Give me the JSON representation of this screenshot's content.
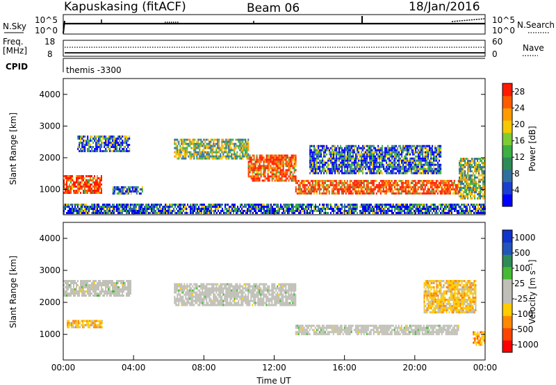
{
  "header": {
    "site": "Kapuskasing (fitACF)",
    "beam": "Beam 06",
    "date": "18/Jan/2016"
  },
  "strip_nsky": {
    "label": "N.Sky",
    "left_ticks": [
      "10^5",
      "10^0"
    ],
    "right_ticks": [
      "10^5",
      "10^0"
    ],
    "right_label": "N.Search"
  },
  "strip_freq": {
    "label_line1": "Freq.",
    "label_line2": "[MHz]",
    "left_ticks": [
      "18",
      "8"
    ],
    "right_ticks": [
      "60",
      "0"
    ],
    "right_label": "Nave"
  },
  "strip_cpid": {
    "label": "CPID",
    "text": "themis -3300"
  },
  "colors": {
    "power_scale": [
      "#0000ff",
      "#1a3fd0",
      "#2f6f9f",
      "#2e8b57",
      "#3cb043",
      "#7ccd33",
      "#f5c800",
      "#ff9a00",
      "#ff5a00",
      "#ff1a00"
    ],
    "velocity_scale": [
      "#1133cc",
      "#2255bb",
      "#2e8b57",
      "#44bb33",
      "#bfbfb7",
      "#bfbfb7",
      "#ffcc00",
      "#ff8800",
      "#ff4400",
      "#ff0000"
    ],
    "ground_scatter": "#bfbfb7"
  },
  "chart_data": [
    {
      "type": "heatmap",
      "name": "power-panel",
      "xlabel": "",
      "ylabel": "Slant Range [km]",
      "xlim": [
        0,
        24
      ],
      "ylim": [
        200,
        4500
      ],
      "yticks": [
        "1000",
        "2000",
        "3000",
        "4000"
      ],
      "colorbar": {
        "label": "Power [dB]",
        "ticks": [
          "4",
          "8",
          "12",
          "16",
          "20",
          "24",
          "28"
        ],
        "range": [
          0,
          30
        ]
      },
      "features": [
        {
          "t": [
            0.0,
            2.2
          ],
          "r": [
            900,
            1450
          ],
          "level": "high"
        },
        {
          "t": [
            0.8,
            3.8
          ],
          "r": [
            2200,
            2700
          ],
          "level": "low"
        },
        {
          "t": [
            2.8,
            4.5
          ],
          "r": [
            900,
            1100
          ],
          "level": "low"
        },
        {
          "t": [
            6.3,
            10.5
          ],
          "r": [
            2000,
            2600
          ],
          "level": "medium"
        },
        {
          "t": [
            10.5,
            13.2
          ],
          "r": [
            1300,
            2100
          ],
          "level": "high"
        },
        {
          "t": [
            13.2,
            22.5
          ],
          "r": [
            900,
            1300
          ],
          "level": "high"
        },
        {
          "t": [
            14.0,
            21.5
          ],
          "r": [
            1500,
            2400
          ],
          "level": "low"
        },
        {
          "t": [
            22.5,
            24.0
          ],
          "r": [
            700,
            2000
          ],
          "level": "medium"
        },
        {
          "t": [
            0.0,
            24.0
          ],
          "r": [
            250,
            550
          ],
          "level": "low"
        }
      ]
    },
    {
      "type": "heatmap",
      "name": "velocity-panel",
      "xlabel": "Time UT",
      "ylabel": "Slant Range [km]",
      "xlim": [
        0,
        24
      ],
      "ylim": [
        200,
        4500
      ],
      "xticks": [
        "00:00",
        "04:00",
        "08:00",
        "12:00",
        "16:00",
        "20:00",
        "00:00"
      ],
      "yticks": [
        "1000",
        "2000",
        "3000",
        "4000"
      ],
      "colorbar": {
        "label": "Velocity [m s⁻¹]",
        "ticks": [
          "1000",
          "500",
          "100",
          "25",
          "-25",
          "-100",
          "-500",
          "-1000"
        ],
        "range": [
          -1000,
          1000
        ]
      },
      "features": [
        {
          "t": [
            0.2,
            2.2
          ],
          "r": [
            1200,
            1450
          ],
          "v": -100
        },
        {
          "t": [
            0.0,
            3.8
          ],
          "r": [
            2200,
            2700
          ],
          "v": 0
        },
        {
          "t": [
            6.3,
            13.2
          ],
          "r": [
            1900,
            2600
          ],
          "v": 0
        },
        {
          "t": [
            13.2,
            22.5
          ],
          "r": [
            1000,
            1300
          ],
          "v": 0
        },
        {
          "t": [
            23.3,
            24.0
          ],
          "r": [
            700,
            1100
          ],
          "v": -300
        },
        {
          "t": [
            20.5,
            23.5
          ],
          "r": [
            1700,
            2700
          ],
          "v": -50
        }
      ]
    }
  ]
}
